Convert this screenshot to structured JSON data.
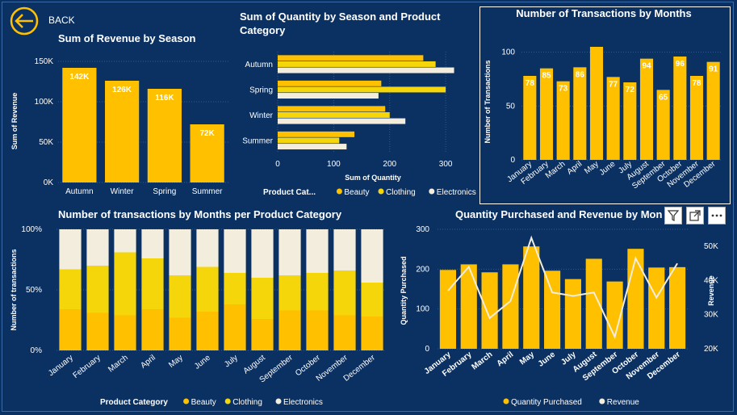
{
  "nav": {
    "back_label": "BACK"
  },
  "colors": {
    "background": "#0B3163",
    "beauty": "#FFC000",
    "clothing": "#F5D60A",
    "electronics": "#F2EDDC",
    "bar": "#FFC000",
    "revenue_line": "#F2EDDC"
  },
  "toolbar": {
    "filter_icon": "filter-icon",
    "focus_icon": "focus-mode-icon",
    "more_icon": "more-options-icon"
  },
  "chart_data": [
    {
      "id": "revenue_by_season",
      "type": "bar",
      "title": "Sum of Revenue by Season",
      "ylabel": "Sum of Revenue",
      "xlabel": "",
      "categories": [
        "Autumn",
        "Winter",
        "Spring",
        "Summer"
      ],
      "values": [
        142000,
        126000,
        116000,
        72000
      ],
      "data_labels": [
        "142K",
        "126K",
        "116K",
        "72K"
      ],
      "ylim": [
        0,
        160000
      ],
      "yticks": [
        0,
        50000,
        100000,
        150000
      ],
      "ytick_labels": [
        "0K",
        "50K",
        "100K",
        "150K"
      ]
    },
    {
      "id": "quantity_by_season_category",
      "type": "bar",
      "orientation": "horizontal",
      "title_lines": [
        "Sum of Quantity by Season and Product",
        "Category"
      ],
      "xlabel": "Sum of Quantity",
      "categories": [
        "Autumn",
        "Spring",
        "Winter",
        "Summer"
      ],
      "series": [
        {
          "name": "Beauty",
          "values": [
            260,
            185,
            192,
            137
          ]
        },
        {
          "name": "Clothing",
          "values": [
            282,
            300,
            200,
            110
          ]
        },
        {
          "name": "Electronics",
          "values": [
            315,
            180,
            228,
            123
          ]
        }
      ],
      "xlim": [
        0,
        320
      ],
      "xticks": [
        0,
        100,
        200,
        300
      ],
      "legend_title": "Product Cat...",
      "legend_position": "bottom"
    },
    {
      "id": "transactions_by_month",
      "type": "bar",
      "title": "Number of Transactions by Months",
      "ylabel": "Number of Transactions",
      "categories": [
        "January",
        "February",
        "March",
        "April",
        "May",
        "June",
        "July",
        "August",
        "September",
        "October",
        "November",
        "December"
      ],
      "values": [
        78,
        85,
        73,
        86,
        105,
        77,
        72,
        94,
        65,
        96,
        78,
        91
      ],
      "data_labels": [
        "78",
        "85",
        "73",
        "86",
        "",
        "77",
        "72",
        "94",
        "65",
        "96",
        "78",
        "91"
      ],
      "ylim": [
        0,
        108
      ],
      "yticks": [
        0,
        50,
        100
      ]
    },
    {
      "id": "transactions_pct_by_month_category",
      "type": "bar",
      "stacked": "percent",
      "title": "Number of transactions by Months per Product Category",
      "ylabel": "Number of transactions",
      "categories": [
        "January",
        "February",
        "March",
        "April",
        "May",
        "June",
        "July",
        "August",
        "September",
        "October",
        "November",
        "December"
      ],
      "series": [
        {
          "name": "Beauty",
          "values": [
            34,
            31,
            29,
            34,
            27,
            32,
            38,
            26,
            33,
            33,
            29,
            28
          ]
        },
        {
          "name": "Clothing",
          "values": [
            33,
            39,
            52,
            42,
            35,
            37,
            26,
            34,
            29,
            31,
            37,
            28
          ]
        },
        {
          "name": "Electronics",
          "values": [
            33,
            30,
            19,
            24,
            38,
            31,
            36,
            40,
            38,
            36,
            34,
            44
          ]
        }
      ],
      "ylim": [
        0,
        100
      ],
      "yticks": [
        0,
        50,
        100
      ],
      "ytick_labels": [
        "0%",
        "50%",
        "100%"
      ],
      "legend_title": "Product Category",
      "legend_position": "bottom"
    },
    {
      "id": "quantity_and_revenue_by_month",
      "type": "bar",
      "combo": "bar-line",
      "title": "Quantity Purchased and Revenue by Mon",
      "ylabel": "Quantity Purchased",
      "y2label": "Revenue",
      "categories": [
        "January",
        "February",
        "March",
        "April",
        "May",
        "June",
        "July",
        "August",
        "September",
        "October",
        "November",
        "December"
      ],
      "series": [
        {
          "name": "Quantity Purchased",
          "type": "bar",
          "values": [
            198,
            212,
            192,
            212,
            257,
            196,
            175,
            226,
            169,
            251,
            204,
            205
          ]
        },
        {
          "name": "Revenue",
          "type": "line",
          "values": [
            37000,
            44000,
            29000,
            34000,
            52500,
            36500,
            35500,
            36500,
            23500,
            46500,
            35000,
            45000
          ]
        }
      ],
      "ylim": [
        0,
        300
      ],
      "yticks": [
        0,
        100,
        200,
        300
      ],
      "y2lim": [
        20000,
        55000
      ],
      "y2ticks": [
        20000,
        30000,
        40000,
        50000
      ],
      "y2tick_labels": [
        "20K",
        "30K",
        "40K",
        "50K"
      ],
      "legend_position": "bottom"
    }
  ]
}
